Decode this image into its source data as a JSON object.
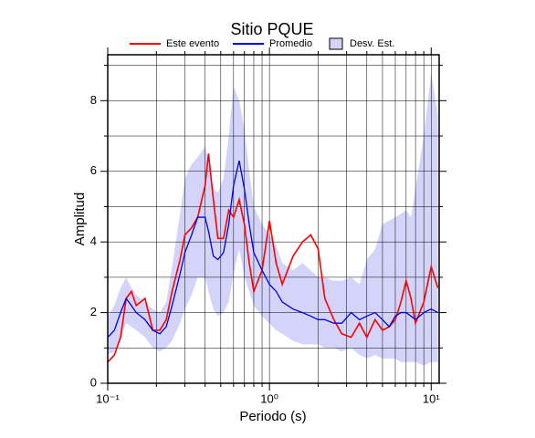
{
  "chart_data": {
    "type": "line",
    "title": "Sitio PQUE",
    "xlabel": "Periodo (s)",
    "ylabel": "Amplitud",
    "xscale": "log",
    "grid": true,
    "xlim": [
      0.1,
      11.2
    ],
    "ylim": [
      0,
      9.3
    ],
    "xticks": [
      {
        "value": 0.1,
        "label": "10⁻¹"
      },
      {
        "value": 1,
        "label": "10⁰"
      },
      {
        "value": 10,
        "label": "10¹"
      }
    ],
    "xminorticks": [
      0.2,
      0.3,
      0.4,
      0.5,
      0.6,
      0.7,
      0.8,
      0.9,
      2,
      3,
      4,
      5,
      6,
      7,
      8,
      9
    ],
    "yticks": [
      0,
      2,
      4,
      6,
      8
    ],
    "yminorticks": [
      1,
      3,
      5,
      7,
      9
    ],
    "x": [
      0.1,
      0.11,
      0.12,
      0.13,
      0.14,
      0.15,
      0.17,
      0.19,
      0.21,
      0.23,
      0.25,
      0.28,
      0.3,
      0.33,
      0.36,
      0.4,
      0.42,
      0.45,
      0.48,
      0.52,
      0.56,
      0.6,
      0.65,
      0.7,
      0.75,
      0.8,
      0.9,
      1.0,
      1.1,
      1.2,
      1.4,
      1.6,
      1.8,
      2.0,
      2.2,
      2.5,
      2.8,
      3.2,
      3.6,
      4.0,
      4.5,
      5.0,
      5.5,
      6.0,
      6.5,
      7.0,
      7.5,
      8,
      9,
      10,
      11
    ],
    "series": [
      {
        "name": "Este evento",
        "color": "#ff0000",
        "values": [
          0.6,
          0.8,
          1.3,
          2.4,
          2.6,
          2.2,
          2.4,
          1.5,
          1.5,
          1.8,
          2.6,
          3.5,
          4.2,
          4.4,
          4.7,
          5.6,
          6.5,
          5.2,
          4.1,
          4.1,
          4.9,
          4.7,
          5.2,
          4.5,
          3.4,
          2.6,
          3.2,
          4.6,
          3.4,
          2.8,
          3.6,
          4.0,
          4.2,
          3.8,
          2.4,
          1.8,
          1.4,
          1.3,
          1.7,
          1.3,
          1.8,
          1.5,
          1.6,
          1.8,
          2.3,
          2.9,
          2.4,
          1.7,
          2.3,
          3.3,
          2.7
        ]
      },
      {
        "name": "Promedio",
        "color": "#0000dd",
        "values": [
          1.3,
          1.5,
          2.0,
          2.4,
          2.2,
          2.0,
          1.8,
          1.5,
          1.4,
          1.6,
          2.2,
          3.1,
          3.7,
          4.2,
          4.7,
          4.7,
          4.3,
          3.6,
          3.5,
          3.7,
          4.5,
          5.6,
          6.3,
          5.5,
          4.5,
          3.7,
          3.2,
          2.8,
          2.6,
          2.3,
          2.1,
          2.0,
          1.9,
          1.8,
          1.8,
          1.7,
          1.7,
          2.0,
          1.8,
          1.9,
          2.0,
          1.8,
          1.6,
          1.9,
          2.0,
          2.0,
          1.9,
          1.8,
          2.0,
          2.1,
          2.0
        ]
      },
      {
        "name": "Desv. Est.",
        "color": "#d4d4fa",
        "upper": [
          1.9,
          2.2,
          2.7,
          3.0,
          2.7,
          2.5,
          2.3,
          2.1,
          2.0,
          2.3,
          3.3,
          4.8,
          5.8,
          6.2,
          6.4,
          6.7,
          6.3,
          5.5,
          5.4,
          5.8,
          7.0,
          8.4,
          8.0,
          7.2,
          6.0,
          5.0,
          4.5,
          4.2,
          3.9,
          3.4,
          3.2,
          3.4,
          3.2,
          3.0,
          3.0,
          2.9,
          2.9,
          3.0,
          2.8,
          3.5,
          3.8,
          4.5,
          4.6,
          4.7,
          4.8,
          4.9,
          4.7,
          5.5,
          7.0,
          8.8,
          7.6
        ],
        "lower": [
          0.8,
          0.9,
          1.2,
          1.7,
          1.6,
          1.5,
          1.3,
          1.0,
          0.9,
          1.0,
          1.2,
          1.7,
          2.1,
          2.5,
          3.0,
          3.0,
          2.6,
          2.1,
          1.9,
          2.0,
          2.3,
          3.1,
          3.8,
          3.0,
          2.6,
          2.2,
          1.9,
          1.7,
          1.5,
          1.4,
          1.2,
          1.1,
          1.1,
          1.1,
          1.0,
          1.0,
          0.9,
          1.0,
          0.8,
          0.7,
          0.8,
          0.7,
          0.7,
          0.7,
          0.6,
          0.6,
          0.6,
          0.6,
          0.5,
          0.6,
          0.6
        ]
      }
    ]
  }
}
